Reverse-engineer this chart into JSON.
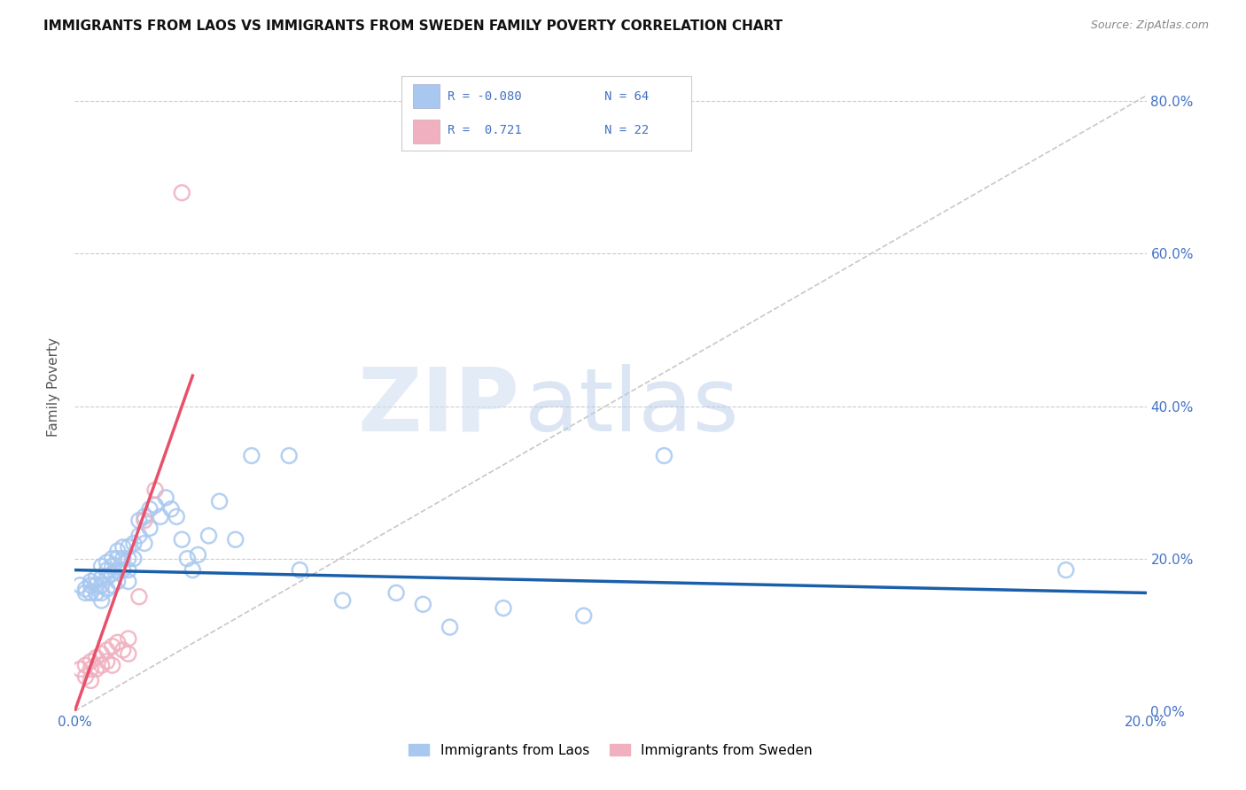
{
  "title": "IMMIGRANTS FROM LAOS VS IMMIGRANTS FROM SWEDEN FAMILY POVERTY CORRELATION CHART",
  "source": "Source: ZipAtlas.com",
  "ylabel": "Family Poverty",
  "xmin": 0.0,
  "xmax": 0.2,
  "ymin": 0.0,
  "ymax": 0.85,
  "yticks": [
    0.0,
    0.2,
    0.4,
    0.6,
    0.8
  ],
  "ytick_labels": [
    "0.0%",
    "20.0%",
    "40.0%",
    "60.0%",
    "80.0%"
  ],
  "xticks": [
    0.0,
    0.05,
    0.1,
    0.15,
    0.2
  ],
  "xtick_labels": [
    "0.0%",
    "",
    "",
    "",
    "20.0%"
  ],
  "laos_R": -0.08,
  "laos_N": 64,
  "sweden_R": 0.721,
  "sweden_N": 22,
  "laos_color": "#a8c8f0",
  "sweden_color": "#f0b0c0",
  "laos_line_color": "#1a5faa",
  "sweden_line_color": "#e8506a",
  "diagonal_color": "#c8c8c8",
  "background_color": "#ffffff",
  "watermark_zip": "ZIP",
  "watermark_atlas": "atlas",
  "laos_x": [
    0.001,
    0.002,
    0.002,
    0.003,
    0.003,
    0.003,
    0.004,
    0.004,
    0.004,
    0.005,
    0.005,
    0.005,
    0.005,
    0.005,
    0.006,
    0.006,
    0.006,
    0.006,
    0.007,
    0.007,
    0.007,
    0.007,
    0.008,
    0.008,
    0.008,
    0.008,
    0.009,
    0.009,
    0.009,
    0.01,
    0.01,
    0.01,
    0.01,
    0.011,
    0.011,
    0.012,
    0.012,
    0.013,
    0.013,
    0.014,
    0.014,
    0.015,
    0.016,
    0.017,
    0.018,
    0.019,
    0.02,
    0.021,
    0.022,
    0.023,
    0.025,
    0.027,
    0.03,
    0.033,
    0.04,
    0.042,
    0.05,
    0.06,
    0.065,
    0.07,
    0.08,
    0.095,
    0.11,
    0.185
  ],
  "laos_y": [
    0.165,
    0.16,
    0.155,
    0.17,
    0.165,
    0.155,
    0.175,
    0.165,
    0.155,
    0.19,
    0.175,
    0.165,
    0.155,
    0.145,
    0.195,
    0.185,
    0.175,
    0.16,
    0.2,
    0.19,
    0.18,
    0.165,
    0.21,
    0.2,
    0.185,
    0.17,
    0.215,
    0.2,
    0.185,
    0.215,
    0.2,
    0.185,
    0.17,
    0.22,
    0.2,
    0.25,
    0.23,
    0.255,
    0.22,
    0.265,
    0.24,
    0.27,
    0.255,
    0.28,
    0.265,
    0.255,
    0.225,
    0.2,
    0.185,
    0.205,
    0.23,
    0.275,
    0.225,
    0.335,
    0.335,
    0.185,
    0.145,
    0.155,
    0.14,
    0.11,
    0.135,
    0.125,
    0.335,
    0.185
  ],
  "sweden_x": [
    0.001,
    0.002,
    0.002,
    0.003,
    0.003,
    0.003,
    0.004,
    0.004,
    0.005,
    0.005,
    0.006,
    0.006,
    0.007,
    0.007,
    0.008,
    0.009,
    0.01,
    0.01,
    0.012,
    0.013,
    0.015,
    0.02
  ],
  "sweden_y": [
    0.055,
    0.06,
    0.045,
    0.065,
    0.055,
    0.04,
    0.07,
    0.055,
    0.075,
    0.06,
    0.08,
    0.065,
    0.085,
    0.06,
    0.09,
    0.08,
    0.095,
    0.075,
    0.15,
    0.25,
    0.29,
    0.68
  ],
  "laos_trend_x0": 0.0,
  "laos_trend_y0": 0.185,
  "laos_trend_x1": 0.2,
  "laos_trend_y1": 0.155,
  "sweden_trend_x0": 0.0,
  "sweden_trend_y0": 0.0,
  "sweden_trend_x1": 0.022,
  "sweden_trend_y1": 0.44
}
